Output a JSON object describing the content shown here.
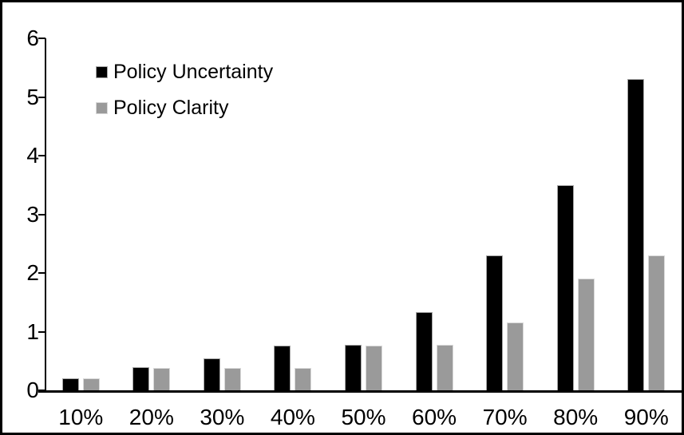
{
  "chart_data": {
    "type": "bar",
    "categories": [
      "10%",
      "20%",
      "30%",
      "40%",
      "50%",
      "60%",
      "70%",
      "80%",
      "90%"
    ],
    "series": [
      {
        "name": "Policy Uncertainty",
        "color": "#000000",
        "border_color": "#a6a6a6",
        "values": [
          0.2,
          0.4,
          0.55,
          0.76,
          0.77,
          1.33,
          2.3,
          3.5,
          5.3
        ]
      },
      {
        "name": "Policy Clarity",
        "color": "#9a9a9a",
        "border_color": "#d9d9d9",
        "values": [
          0.2,
          0.38,
          0.38,
          0.38,
          0.76,
          0.77,
          1.15,
          1.9,
          2.3
        ]
      }
    ],
    "y_ticks": [
      "0",
      "1",
      "2",
      "3",
      "4",
      "5",
      "6"
    ],
    "ylim": [
      0,
      6
    ],
    "xlabel": "",
    "ylabel": "",
    "grid": false,
    "legend_position": "top-left",
    "frame_color": "#000000",
    "background_color": "#ffffff"
  }
}
